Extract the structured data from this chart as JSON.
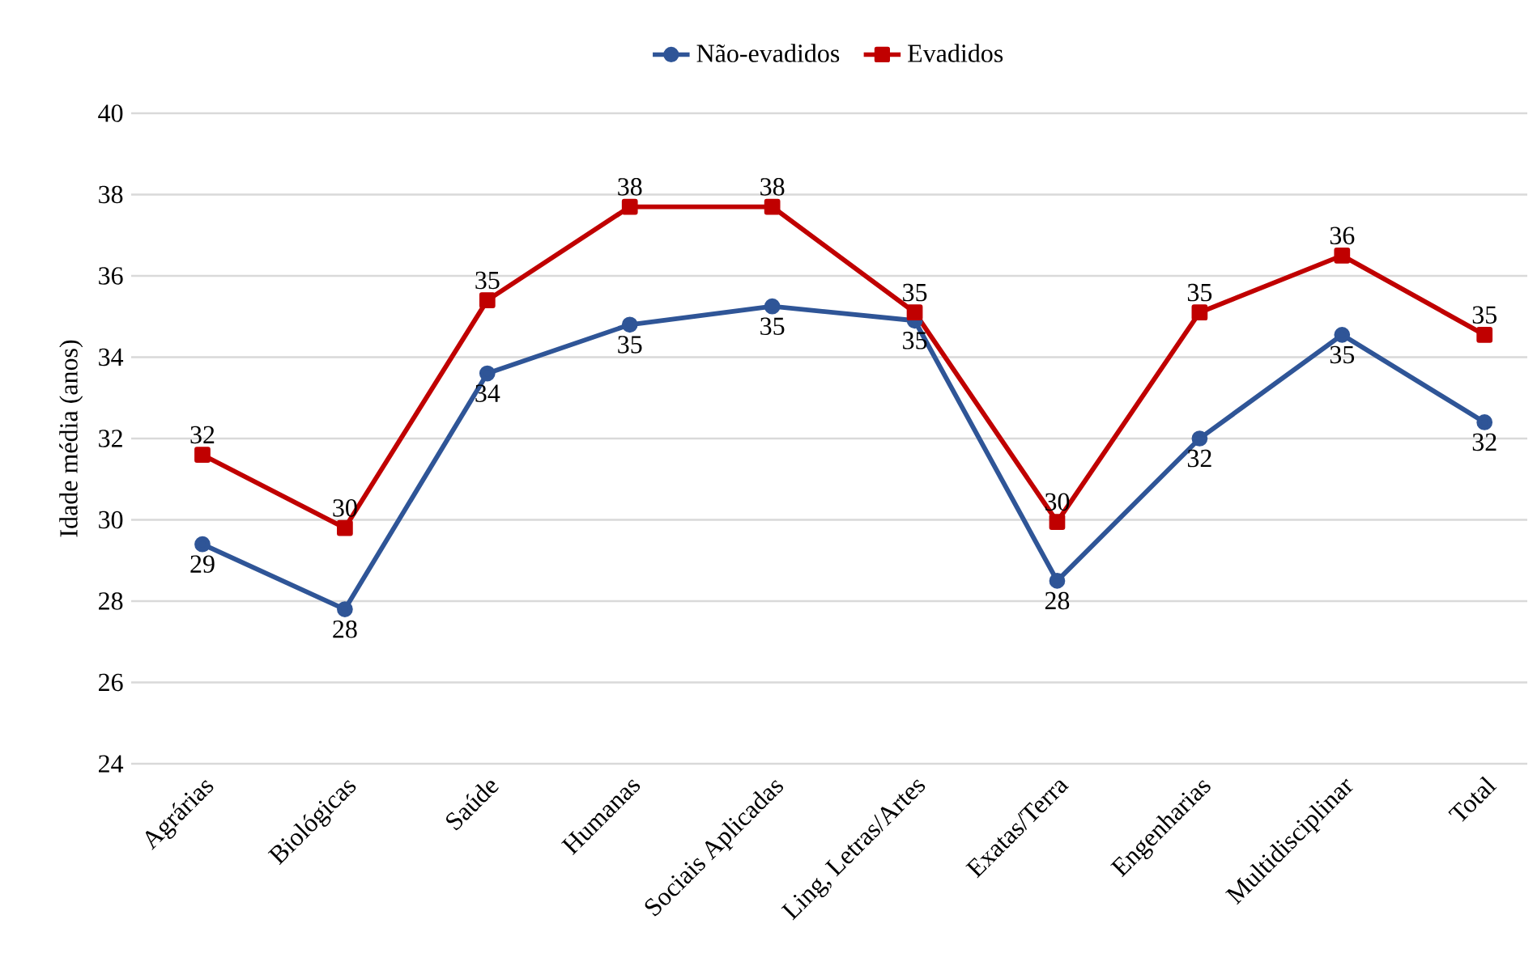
{
  "chart_data": {
    "type": "line",
    "ylabel": "Idade média (anos)",
    "categories": [
      "Agrárias",
      "Biológicas",
      "Saúde",
      "Humanas",
      "Sociais Aplicadas",
      "Ling, Letras/Artes",
      "Exatas/Terra",
      "Engenharias",
      "Multidisciplinar",
      "Total"
    ],
    "series": [
      {
        "name": "Não-evadidos",
        "color": "#2f5597",
        "marker": "circle",
        "values": [
          29.4,
          27.8,
          33.6,
          34.8,
          35.25,
          34.9,
          28.5,
          32.0,
          34.55,
          32.4
        ],
        "value_labels": [
          "29",
          "28",
          "34",
          "35",
          "35",
          "35",
          "28",
          "32",
          "35",
          "32"
        ]
      },
      {
        "name": "Evadidos",
        "color": "#c00000",
        "marker": "square",
        "values": [
          31.6,
          29.8,
          35.4,
          37.7,
          37.7,
          35.1,
          29.95,
          35.1,
          36.5,
          34.55
        ],
        "value_labels": [
          "32",
          "30",
          "35",
          "38",
          "38",
          "35",
          "30",
          "35",
          "36",
          "35"
        ]
      }
    ],
    "ylim": [
      24,
      40
    ],
    "yticks": [
      24,
      26,
      28,
      30,
      32,
      34,
      36,
      38,
      40
    ],
    "grid": "y",
    "legend": "top",
    "line_style": "solid"
  }
}
